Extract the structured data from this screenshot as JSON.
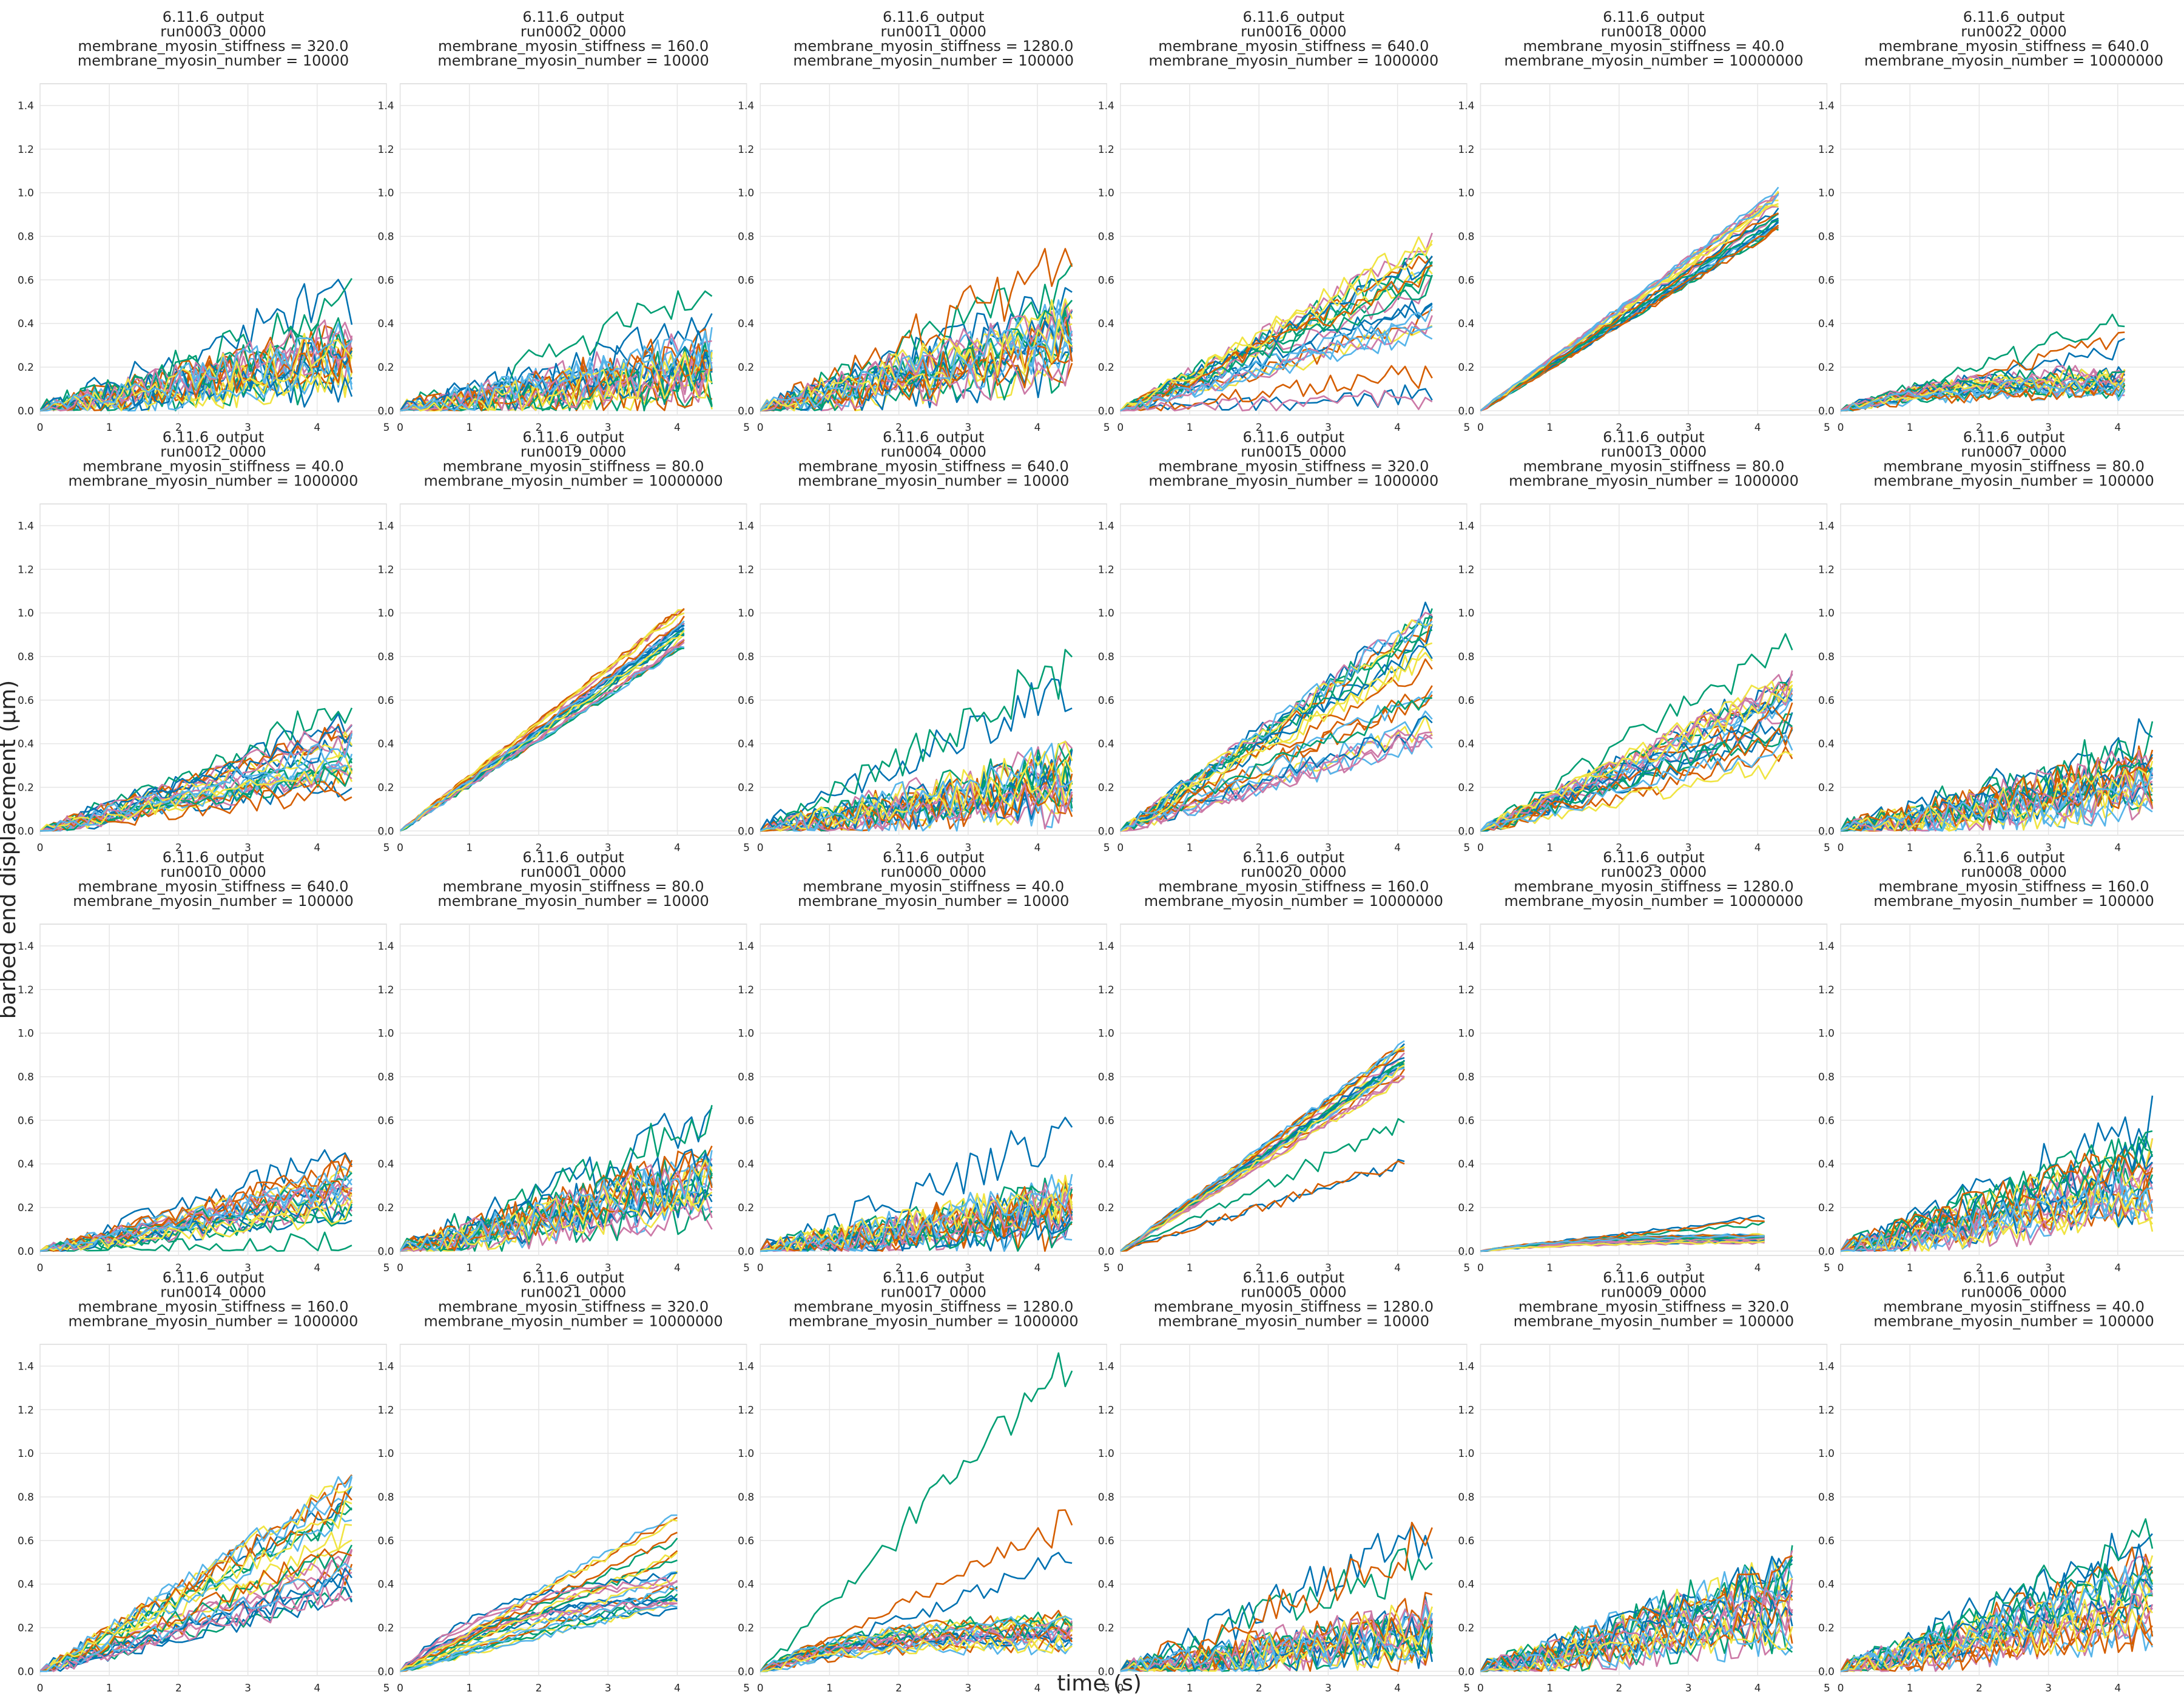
{
  "figure": {
    "xlabel": "time (s)",
    "ylabel": "barbed end displacement (μm)"
  },
  "colors": [
    "#0072b2",
    "#009e73",
    "#d55e00",
    "#cc79a7",
    "#f0e442",
    "#56b4e9"
  ],
  "chart_data": [
    {
      "type": "line",
      "title": [
        "6.11.6_output",
        "run0003_0000",
        "membrane_myosin_stiffness = 320.0",
        "membrane_myosin_number = 10000"
      ],
      "regime": "noisy",
      "trend": 0.055,
      "tmax": 4.5,
      "outliers": [
        [
          4,
          0.55
        ],
        [
          5,
          0.5
        ]
      ],
      "xlim": [
        0,
        5
      ],
      "ylim": [
        -0.02,
        1.5
      ],
      "xticks": [
        0,
        1,
        2,
        3,
        4,
        5
      ],
      "yticks": [
        0.0,
        0.2,
        0.4,
        0.6,
        0.8,
        1.0,
        1.2,
        1.4
      ]
    },
    {
      "type": "line",
      "title": [
        "6.11.6_output",
        "run0002_0000",
        "membrane_myosin_stiffness = 160.0",
        "membrane_myosin_number = 10000"
      ],
      "regime": "noisy",
      "trend": 0.045,
      "tmax": 4.5,
      "outliers": [
        [
          4,
          0.55
        ],
        [
          2,
          0.4
        ]
      ],
      "xlim": [
        0,
        5
      ],
      "ylim": [
        -0.02,
        1.5
      ],
      "xticks": [
        0,
        1,
        2,
        3,
        4,
        5
      ],
      "yticks": [
        0.0,
        0.2,
        0.4,
        0.6,
        0.8,
        1.0,
        1.2,
        1.4
      ]
    },
    {
      "type": "line",
      "title": [
        "6.11.6_output",
        "run0011_0000",
        "membrane_myosin_stiffness = 1280.0",
        "membrane_myosin_number = 100000"
      ],
      "regime": "noisy",
      "trend": 0.07,
      "tmax": 4.5,
      "outliers": [
        [
          5,
          0.72
        ],
        [
          3,
          0.62
        ],
        [
          0,
          0.55
        ]
      ],
      "xlim": [
        0,
        5
      ],
      "ylim": [
        -0.02,
        1.5
      ],
      "xticks": [
        0,
        1,
        2,
        3,
        4,
        5
      ],
      "yticks": [
        0.0,
        0.2,
        0.4,
        0.6,
        0.8,
        1.0,
        1.2,
        1.4
      ]
    },
    {
      "type": "line",
      "title": [
        "6.11.6_output",
        "run0016_0000",
        "membrane_myosin_stiffness = 640.0",
        "membrane_myosin_number = 1000000"
      ],
      "regime": "linear",
      "trend": 0.13,
      "tmax": 4.5,
      "outliers": [
        [
          2,
          0.75
        ],
        [
          4,
          0.18
        ],
        [
          5,
          0.06
        ],
        [
          1,
          0.07
        ]
      ],
      "xlim": [
        0,
        5
      ],
      "ylim": [
        -0.02,
        1.5
      ],
      "xticks": [
        0,
        1,
        2,
        3,
        4,
        5
      ],
      "yticks": [
        0.0,
        0.2,
        0.4,
        0.6,
        0.8,
        1.0,
        1.2,
        1.4
      ]
    },
    {
      "type": "line",
      "title": [
        "6.11.6_output",
        "run0018_0000",
        "membrane_myosin_stiffness = 40.0",
        "membrane_myosin_number = 10000000"
      ],
      "regime": "tight",
      "trend": 0.215,
      "tmax": 4.3,
      "outliers": [],
      "xlim": [
        0,
        5
      ],
      "ylim": [
        -0.02,
        1.5
      ],
      "xticks": [
        0,
        1,
        2,
        3,
        4,
        5
      ],
      "yticks": [
        0.0,
        0.2,
        0.4,
        0.6,
        0.8,
        1.0,
        1.2,
        1.4
      ]
    },
    {
      "type": "line",
      "title": [
        "6.11.6_output",
        "run0022_0000",
        "membrane_myosin_stiffness = 640.0",
        "membrane_myosin_number = 10000000"
      ],
      "regime": "plateau",
      "trend": 0.05,
      "tmax": 4.1,
      "outliers": [
        [
          2,
          0.42
        ],
        [
          3,
          0.35
        ],
        [
          0,
          0.3
        ]
      ],
      "xlim": [
        0,
        5
      ],
      "ylim": [
        -0.02,
        1.5
      ],
      "xticks": [
        0,
        1,
        2,
        3,
        4,
        5
      ],
      "yticks": [
        0.0,
        0.2,
        0.4,
        0.6,
        0.8,
        1.0,
        1.2,
        1.4
      ]
    },
    {
      "type": "line",
      "title": [
        "6.11.6_output",
        "run0012_0000",
        "membrane_myosin_stiffness = 40.0",
        "membrane_myosin_number = 1000000"
      ],
      "regime": "linear",
      "trend": 0.075,
      "tmax": 4.5,
      "outliers": [
        [
          3,
          0.52
        ],
        [
          4,
          0.58
        ]
      ],
      "xlim": [
        0,
        5
      ],
      "ylim": [
        -0.02,
        1.5
      ],
      "xticks": [
        0,
        1,
        2,
        3,
        4,
        5
      ],
      "yticks": [
        0.0,
        0.2,
        0.4,
        0.6,
        0.8,
        1.0,
        1.2,
        1.4
      ]
    },
    {
      "type": "line",
      "title": [
        "6.11.6_output",
        "run0019_0000",
        "membrane_myosin_stiffness = 80.0",
        "membrane_myosin_number = 10000000"
      ],
      "regime": "tight",
      "trend": 0.23,
      "tmax": 4.1,
      "outliers": [],
      "xlim": [
        0,
        5
      ],
      "ylim": [
        -0.02,
        1.5
      ],
      "xticks": [
        0,
        1,
        2,
        3,
        4,
        5
      ],
      "yticks": [
        0.0,
        0.2,
        0.4,
        0.6,
        0.8,
        1.0,
        1.2,
        1.4
      ]
    },
    {
      "type": "line",
      "title": [
        "6.11.6_output",
        "run0004_0000",
        "membrane_myosin_stiffness = 640.0",
        "membrane_myosin_number = 10000"
      ],
      "regime": "noisy",
      "trend": 0.05,
      "tmax": 4.5,
      "outliers": [
        [
          5,
          0.78
        ],
        [
          2,
          0.68
        ]
      ],
      "xlim": [
        0,
        5
      ],
      "ylim": [
        -0.02,
        1.5
      ],
      "xticks": [
        0,
        1,
        2,
        3,
        4,
        5
      ],
      "yticks": [
        0.0,
        0.2,
        0.4,
        0.6,
        0.8,
        1.0,
        1.2,
        1.4
      ]
    },
    {
      "type": "line",
      "title": [
        "6.11.6_output",
        "run0015_0000",
        "membrane_myosin_stiffness = 320.0",
        "membrane_myosin_number = 1000000"
      ],
      "regime": "linear",
      "trend": 0.16,
      "tmax": 4.5,
      "outliers": [
        [
          1,
          0.92
        ]
      ],
      "xlim": [
        0,
        5
      ],
      "ylim": [
        -0.02,
        1.5
      ],
      "xticks": [
        0,
        1,
        2,
        3,
        4,
        5
      ],
      "yticks": [
        0.0,
        0.2,
        0.4,
        0.6,
        0.8,
        1.0,
        1.2,
        1.4
      ]
    },
    {
      "type": "line",
      "title": [
        "6.11.6_output",
        "run0013_0000",
        "membrane_myosin_stiffness = 80.0",
        "membrane_myosin_number = 1000000"
      ],
      "regime": "linear",
      "trend": 0.11,
      "tmax": 4.5,
      "outliers": [
        [
          5,
          0.9
        ],
        [
          4,
          0.7
        ]
      ],
      "xlim": [
        0,
        5
      ],
      "ylim": [
        -0.02,
        1.5
      ],
      "xticks": [
        0,
        1,
        2,
        3,
        4,
        5
      ],
      "yticks": [
        0.0,
        0.2,
        0.4,
        0.6,
        0.8,
        1.0,
        1.2,
        1.4
      ]
    },
    {
      "type": "line",
      "title": [
        "6.11.6_output",
        "run0007_0000",
        "membrane_myosin_stiffness = 80.0",
        "membrane_myosin_number = 100000"
      ],
      "regime": "noisy",
      "trend": 0.05,
      "tmax": 4.5,
      "outliers": [
        [
          5,
          0.4
        ],
        [
          3,
          0.45
        ]
      ],
      "xlim": [
        0,
        5
      ],
      "ylim": [
        -0.02,
        1.5
      ],
      "xticks": [
        0,
        1,
        2,
        3,
        4,
        5
      ],
      "yticks": [
        0.0,
        0.2,
        0.4,
        0.6,
        0.8,
        1.0,
        1.2,
        1.4
      ]
    },
    {
      "type": "line",
      "title": [
        "6.11.6_output",
        "run0010_0000",
        "membrane_myosin_stiffness = 640.0",
        "membrane_myosin_number = 100000"
      ],
      "regime": "linear",
      "trend": 0.065,
      "tmax": 4.5,
      "outliers": [
        [
          0,
          0.48
        ],
        [
          2,
          0.04
        ]
      ],
      "xlim": [
        0,
        5
      ],
      "ylim": [
        -0.02,
        1.5
      ],
      "xticks": [
        0,
        1,
        2,
        3,
        4,
        5
      ],
      "yticks": [
        0.0,
        0.2,
        0.4,
        0.6,
        0.8,
        1.0,
        1.2,
        1.4
      ]
    },
    {
      "type": "line",
      "title": [
        "6.11.6_output",
        "run0001_0000",
        "membrane_myosin_stiffness = 80.0",
        "membrane_myosin_number = 10000"
      ],
      "regime": "noisy",
      "trend": 0.065,
      "tmax": 4.5,
      "outliers": [
        [
          5,
          0.62
        ],
        [
          1,
          0.6
        ]
      ],
      "xlim": [
        0,
        5
      ],
      "ylim": [
        -0.02,
        1.5
      ],
      "xticks": [
        0,
        1,
        2,
        3,
        4,
        5
      ],
      "yticks": [
        0.0,
        0.2,
        0.4,
        0.6,
        0.8,
        1.0,
        1.2,
        1.4
      ]
    },
    {
      "type": "line",
      "title": [
        "6.11.6_output",
        "run0000_0000",
        "membrane_myosin_stiffness = 40.0",
        "membrane_myosin_number = 10000"
      ],
      "regime": "noisy",
      "trend": 0.04,
      "tmax": 4.5,
      "outliers": [
        [
          3,
          0.55
        ]
      ],
      "xlim": [
        0,
        5
      ],
      "ylim": [
        -0.02,
        1.5
      ],
      "xticks": [
        0,
        1,
        2,
        3,
        4,
        5
      ],
      "yticks": [
        0.0,
        0.2,
        0.4,
        0.6,
        0.8,
        1.0,
        1.2,
        1.4
      ]
    },
    {
      "type": "line",
      "title": [
        "6.11.6_output",
        "run0020_0000",
        "membrane_myosin_stiffness = 160.0",
        "membrane_myosin_number = 10000000"
      ],
      "regime": "tight",
      "trend": 0.215,
      "tmax": 4.1,
      "outliers": [
        [
          0,
          0.42
        ],
        [
          5,
          0.42
        ],
        [
          1,
          0.6
        ]
      ],
      "xlim": [
        0,
        5
      ],
      "ylim": [
        -0.02,
        1.5
      ],
      "xticks": [
        0,
        1,
        2,
        3,
        4,
        5
      ],
      "yticks": [
        0.0,
        0.2,
        0.4,
        0.6,
        0.8,
        1.0,
        1.2,
        1.4
      ]
    },
    {
      "type": "line",
      "title": [
        "6.11.6_output",
        "run0023_0000",
        "membrane_myosin_stiffness = 1280.0",
        "membrane_myosin_number = 10000000"
      ],
      "regime": "flat",
      "trend": 0.015,
      "tmax": 4.1,
      "outliers": [
        [
          0,
          0.16
        ],
        [
          5,
          0.15
        ],
        [
          1,
          0.13
        ]
      ],
      "xlim": [
        0,
        5
      ],
      "ylim": [
        -0.02,
        1.5
      ],
      "xticks": [
        0,
        1,
        2,
        3,
        4,
        5
      ],
      "yticks": [
        0.0,
        0.2,
        0.4,
        0.6,
        0.8,
        1.0,
        1.2,
        1.4
      ]
    },
    {
      "type": "line",
      "title": [
        "6.11.6_output",
        "run0008_0000",
        "membrane_myosin_stiffness = 160.0",
        "membrane_myosin_number = 100000"
      ],
      "regime": "noisy",
      "trend": 0.075,
      "tmax": 4.5,
      "outliers": [
        [
          3,
          0.6
        ],
        [
          4,
          0.55
        ]
      ],
      "xlim": [
        0,
        5
      ],
      "ylim": [
        -0.02,
        1.5
      ],
      "xticks": [
        0,
        1,
        2,
        3,
        4,
        5
      ],
      "yticks": [
        0.0,
        0.2,
        0.4,
        0.6,
        0.8,
        1.0,
        1.2,
        1.4
      ]
    },
    {
      "type": "line",
      "title": [
        "6.11.6_output",
        "run0014_0000",
        "membrane_myosin_stiffness = 160.0",
        "membrane_myosin_number = 1000000"
      ],
      "regime": "linear",
      "trend": 0.14,
      "tmax": 4.5,
      "outliers": [
        [
          4,
          0.82
        ]
      ],
      "xlim": [
        0,
        5
      ],
      "ylim": [
        -0.02,
        1.5
      ],
      "xticks": [
        0,
        1,
        2,
        3,
        4,
        5
      ],
      "yticks": [
        0.0,
        0.2,
        0.4,
        0.6,
        0.8,
        1.0,
        1.2,
        1.4
      ]
    },
    {
      "type": "line",
      "title": [
        "6.11.6_output",
        "run0021_0000",
        "membrane_myosin_stiffness = 320.0",
        "membrane_myosin_number = 10000000"
      ],
      "regime": "mixed",
      "trend": 0.14,
      "tmax": 4.0,
      "outliers": [],
      "xlim": [
        0,
        5
      ],
      "ylim": [
        -0.02,
        1.5
      ],
      "xticks": [
        0,
        1,
        2,
        3,
        4,
        5
      ],
      "yticks": [
        0.0,
        0.2,
        0.4,
        0.6,
        0.8,
        1.0,
        1.2,
        1.4
      ]
    },
    {
      "type": "line",
      "title": [
        "6.11.6_output",
        "run0017_0000",
        "membrane_myosin_stiffness = 1280.0",
        "membrane_myosin_number = 1000000"
      ],
      "regime": "plateau",
      "trend": 0.07,
      "tmax": 4.5,
      "outliers": [
        [
          3,
          1.48
        ],
        [
          5,
          0.72
        ],
        [
          0,
          0.55
        ]
      ],
      "xlim": [
        0,
        5
      ],
      "ylim": [
        -0.02,
        1.5
      ],
      "xticks": [
        0,
        1,
        2,
        3,
        4,
        5
      ],
      "yticks": [
        0.0,
        0.2,
        0.4,
        0.6,
        0.8,
        1.0,
        1.2,
        1.4
      ]
    },
    {
      "type": "line",
      "title": [
        "6.11.6_output",
        "run0005_0000",
        "membrane_myosin_stiffness = 1280.0",
        "membrane_myosin_number = 10000"
      ],
      "regime": "noisy",
      "trend": 0.04,
      "tmax": 4.5,
      "outliers": [
        [
          0,
          0.65
        ],
        [
          5,
          0.6
        ],
        [
          2,
          0.55
        ]
      ],
      "xlim": [
        0,
        5
      ],
      "ylim": [
        -0.02,
        1.5
      ],
      "xticks": [
        0,
        1,
        2,
        3,
        4,
        5
      ],
      "yticks": [
        0.0,
        0.2,
        0.4,
        0.6,
        0.8,
        1.0,
        1.2,
        1.4
      ]
    },
    {
      "type": "line",
      "title": [
        "6.11.6_output",
        "run0009_0000",
        "membrane_myosin_stiffness = 320.0",
        "membrane_myosin_number = 100000"
      ],
      "regime": "noisy",
      "trend": 0.07,
      "tmax": 4.5,
      "outliers": [
        [
          4,
          0.48
        ],
        [
          2,
          0.45
        ]
      ],
      "xlim": [
        0,
        5
      ],
      "ylim": [
        -0.02,
        1.5
      ],
      "xticks": [
        0,
        1,
        2,
        3,
        4,
        5
      ],
      "yticks": [
        0.0,
        0.2,
        0.4,
        0.6,
        0.8,
        1.0,
        1.2,
        1.4
      ]
    },
    {
      "type": "line",
      "title": [
        "6.11.6_output",
        "run0006_0000",
        "membrane_myosin_stiffness = 40.0",
        "membrane_myosin_number = 100000"
      ],
      "regime": "noisy",
      "trend": 0.08,
      "tmax": 4.5,
      "outliers": [
        [
          0,
          0.62
        ],
        [
          1,
          0.6
        ],
        [
          5,
          0.55
        ]
      ],
      "xlim": [
        0,
        5
      ],
      "ylim": [
        -0.02,
        1.5
      ],
      "xticks": [
        0,
        1,
        2,
        3,
        4,
        5
      ],
      "yticks": [
        0.0,
        0.2,
        0.4,
        0.6,
        0.8,
        1.0,
        1.2,
        1.4
      ]
    }
  ]
}
